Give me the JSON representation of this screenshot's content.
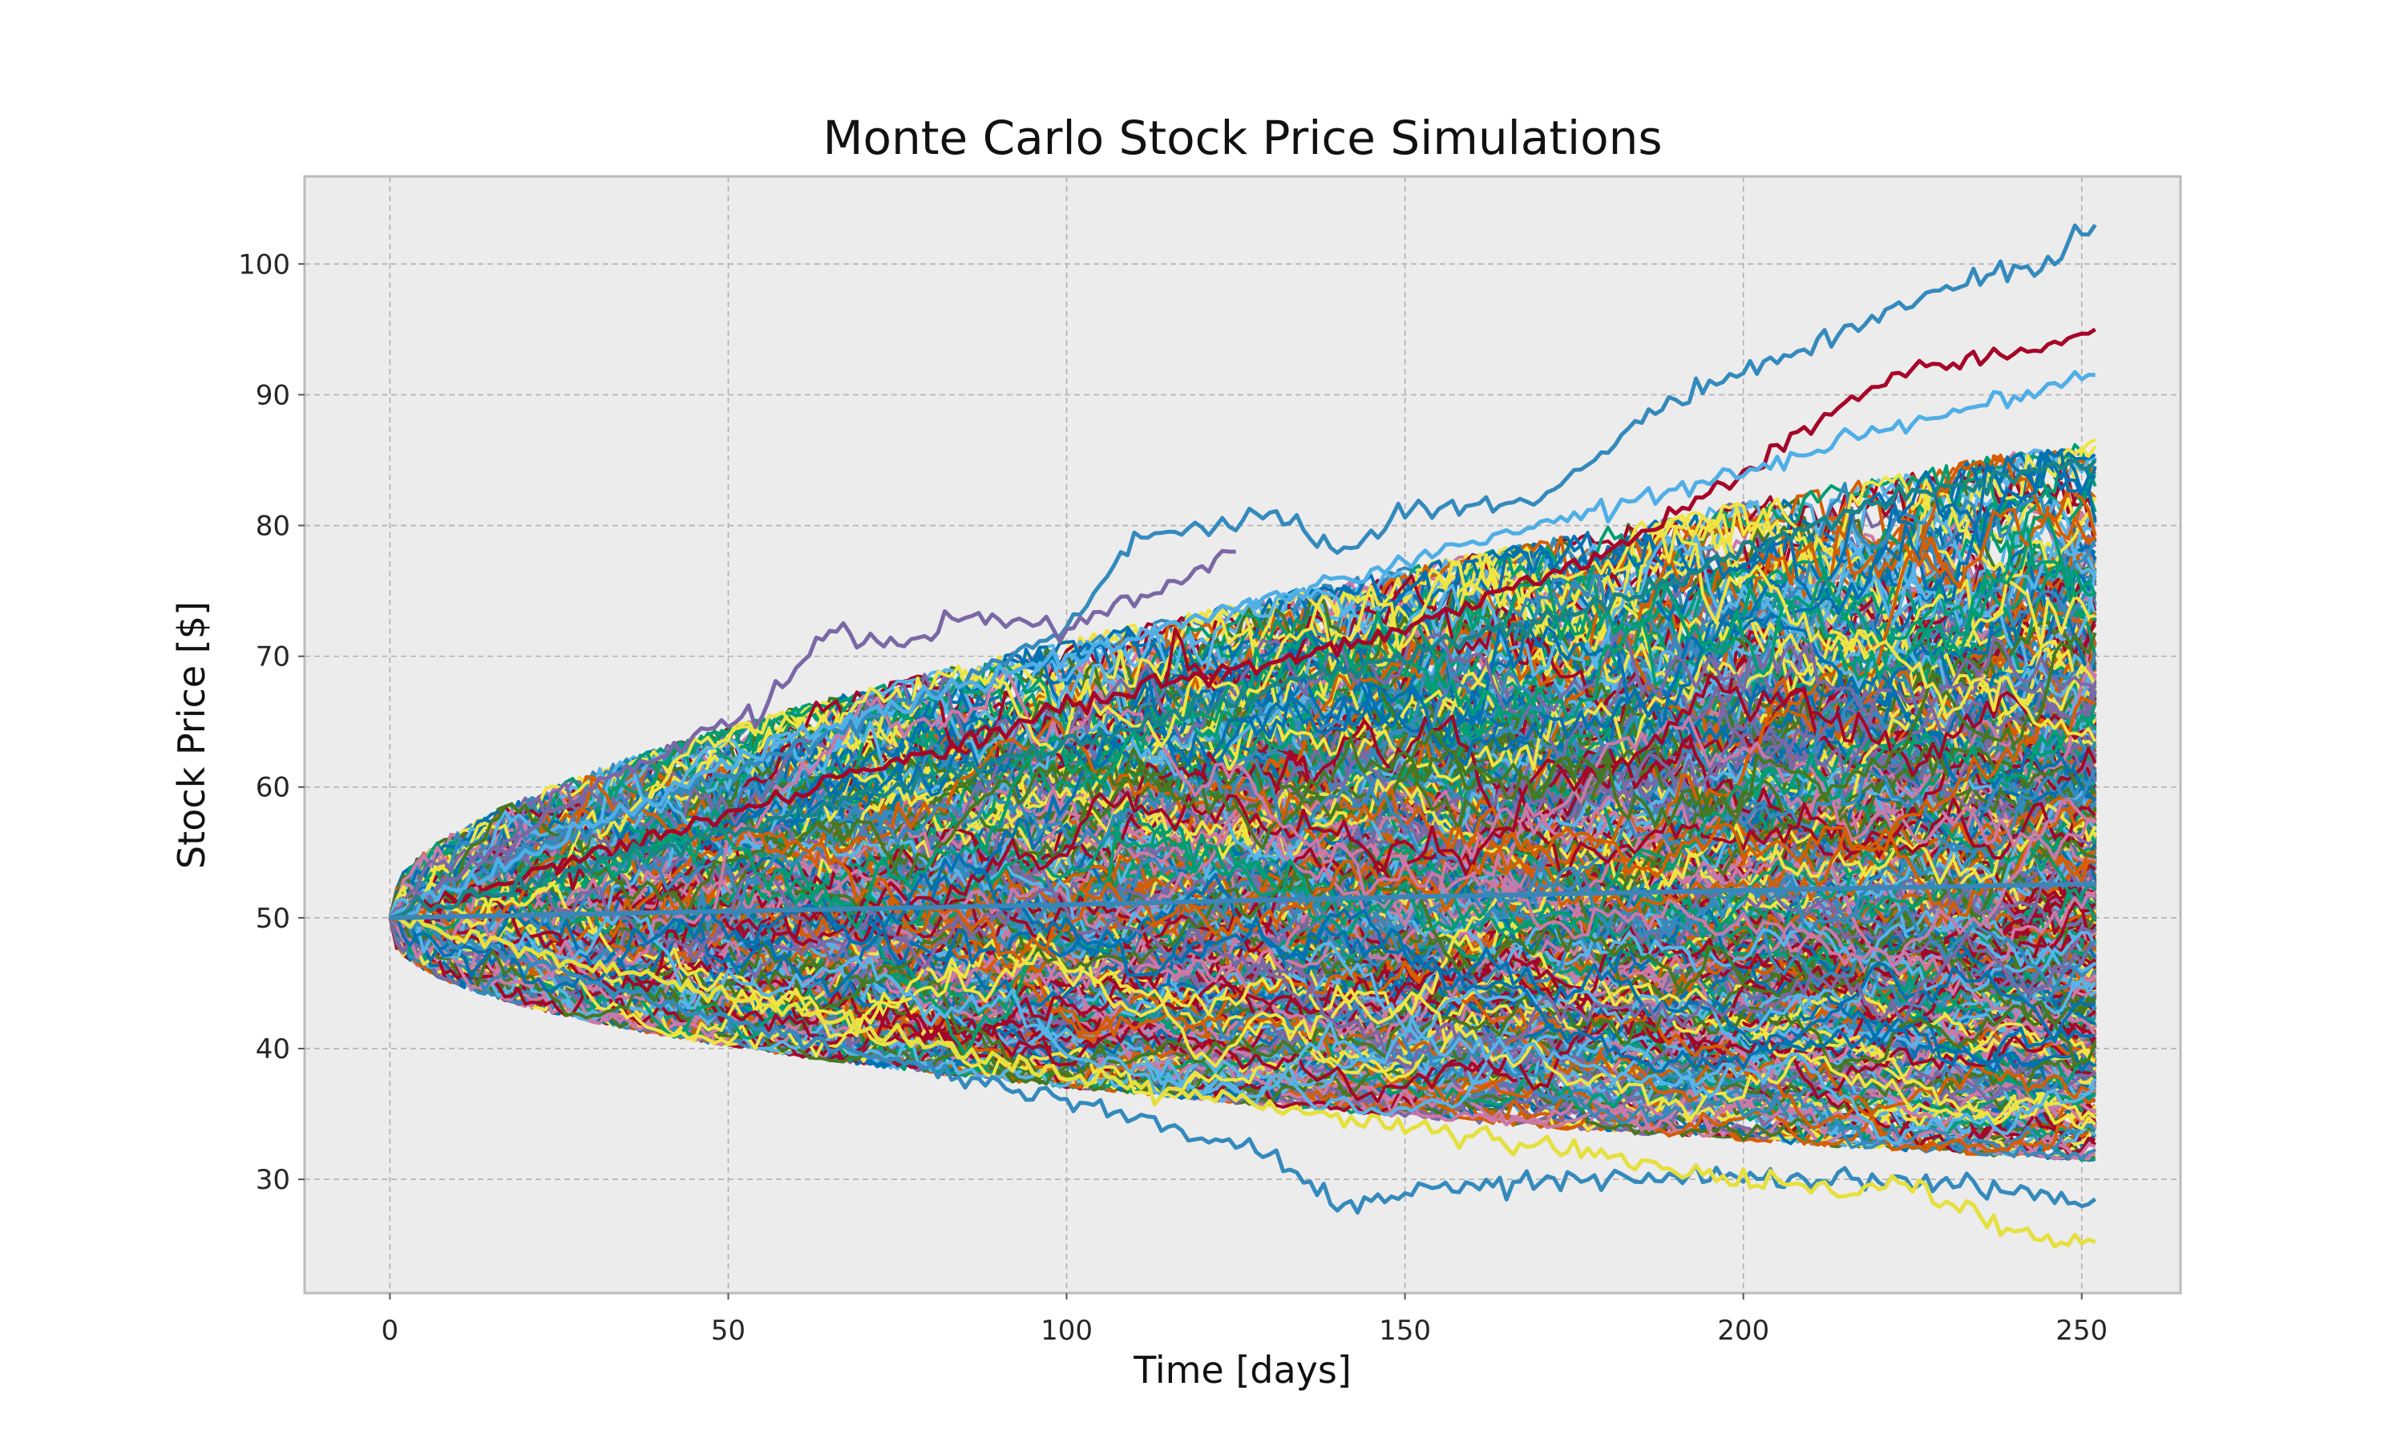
{
  "chart_data": {
    "type": "line",
    "title": "Monte Carlo Stock Price Simulations",
    "xlabel": "Time [days]",
    "ylabel": "Stock Price [$]",
    "xlim": [
      -12.6,
      264.6
    ],
    "ylim": [
      21.3,
      106.7
    ],
    "x_ticks": [
      0,
      50,
      100,
      150,
      200,
      250
    ],
    "y_ticks": [
      30,
      40,
      50,
      60,
      70,
      80,
      90,
      100
    ],
    "grid": true,
    "legend": "none",
    "start_price": 50,
    "days": 252,
    "num_simulations": 1000,
    "envelope": {
      "upper_max_end": 103,
      "lower_min_end": 25.2,
      "typical_upper_end": 85,
      "typical_lower_end": 32
    },
    "mean_path": {
      "x": [
        0,
        50,
        100,
        150,
        200,
        252
      ],
      "y": [
        50,
        50.5,
        51.0,
        51.6,
        52.1,
        52.6
      ]
    },
    "highlighted_paths": [
      {
        "color": "#348ABD",
        "x": [
          0,
          25,
          50,
          75,
          100,
          110,
          125,
          130,
          140,
          150,
          170,
          180,
          190,
          200,
          210,
          225,
          235,
          245,
          252
        ],
        "y": [
          50,
          56,
          61,
          66,
          72,
          79,
          80,
          81,
          78,
          81,
          82,
          86,
          90,
          92,
          94,
          97,
          99,
          100,
          103
        ]
      },
      {
        "color": "#A60628",
        "x": [
          0,
          50,
          100,
          150,
          180,
          200,
          210,
          225,
          240,
          252
        ],
        "y": [
          50,
          58,
          66,
          72,
          78,
          84,
          88,
          92,
          93,
          95
        ]
      },
      {
        "color": "#7A68A6",
        "x": [
          0,
          30,
          55,
          65,
          75,
          85,
          100,
          125
        ],
        "y": [
          50,
          60,
          66,
          72,
          71,
          73,
          72,
          78
        ]
      },
      {
        "color": "#348ABD",
        "x": [
          0,
          50,
          100,
          130,
          140,
          150,
          170,
          200,
          220,
          240,
          252
        ],
        "y": [
          50,
          42,
          36,
          32,
          28,
          29,
          30,
          30,
          30,
          29,
          28.5
        ]
      },
      {
        "color": "#E5E03D",
        "x": [
          0,
          50,
          100,
          150,
          200,
          215,
          225,
          235,
          245,
          252
        ],
        "y": [
          50,
          44,
          38,
          34,
          30,
          29,
          29.5,
          27,
          25.5,
          25.2
        ]
      },
      {
        "color": "#4FAEE6",
        "x": [
          0,
          60,
          120,
          170,
          220,
          240,
          252
        ],
        "y": [
          50,
          64,
          73,
          80,
          87,
          90,
          91.5
        ]
      },
      {
        "color": "#188487",
        "x": [
          0,
          60,
          120,
          180,
          220,
          252
        ],
        "y": [
          50,
          58,
          66,
          74,
          82,
          85
        ]
      }
    ]
  },
  "colors": {
    "plot_background": "#ECECEC",
    "grid": "#B0B0B0",
    "spine": "#BCBCBC",
    "series_cycle": [
      "#348ABD",
      "#A60628",
      "#7A68A6",
      "#467821",
      "#D55E00",
      "#CC79A7",
      "#56B4E9",
      "#009E73",
      "#F0E442",
      "#0072B2"
    ],
    "mean_line": "#3A86B8"
  }
}
